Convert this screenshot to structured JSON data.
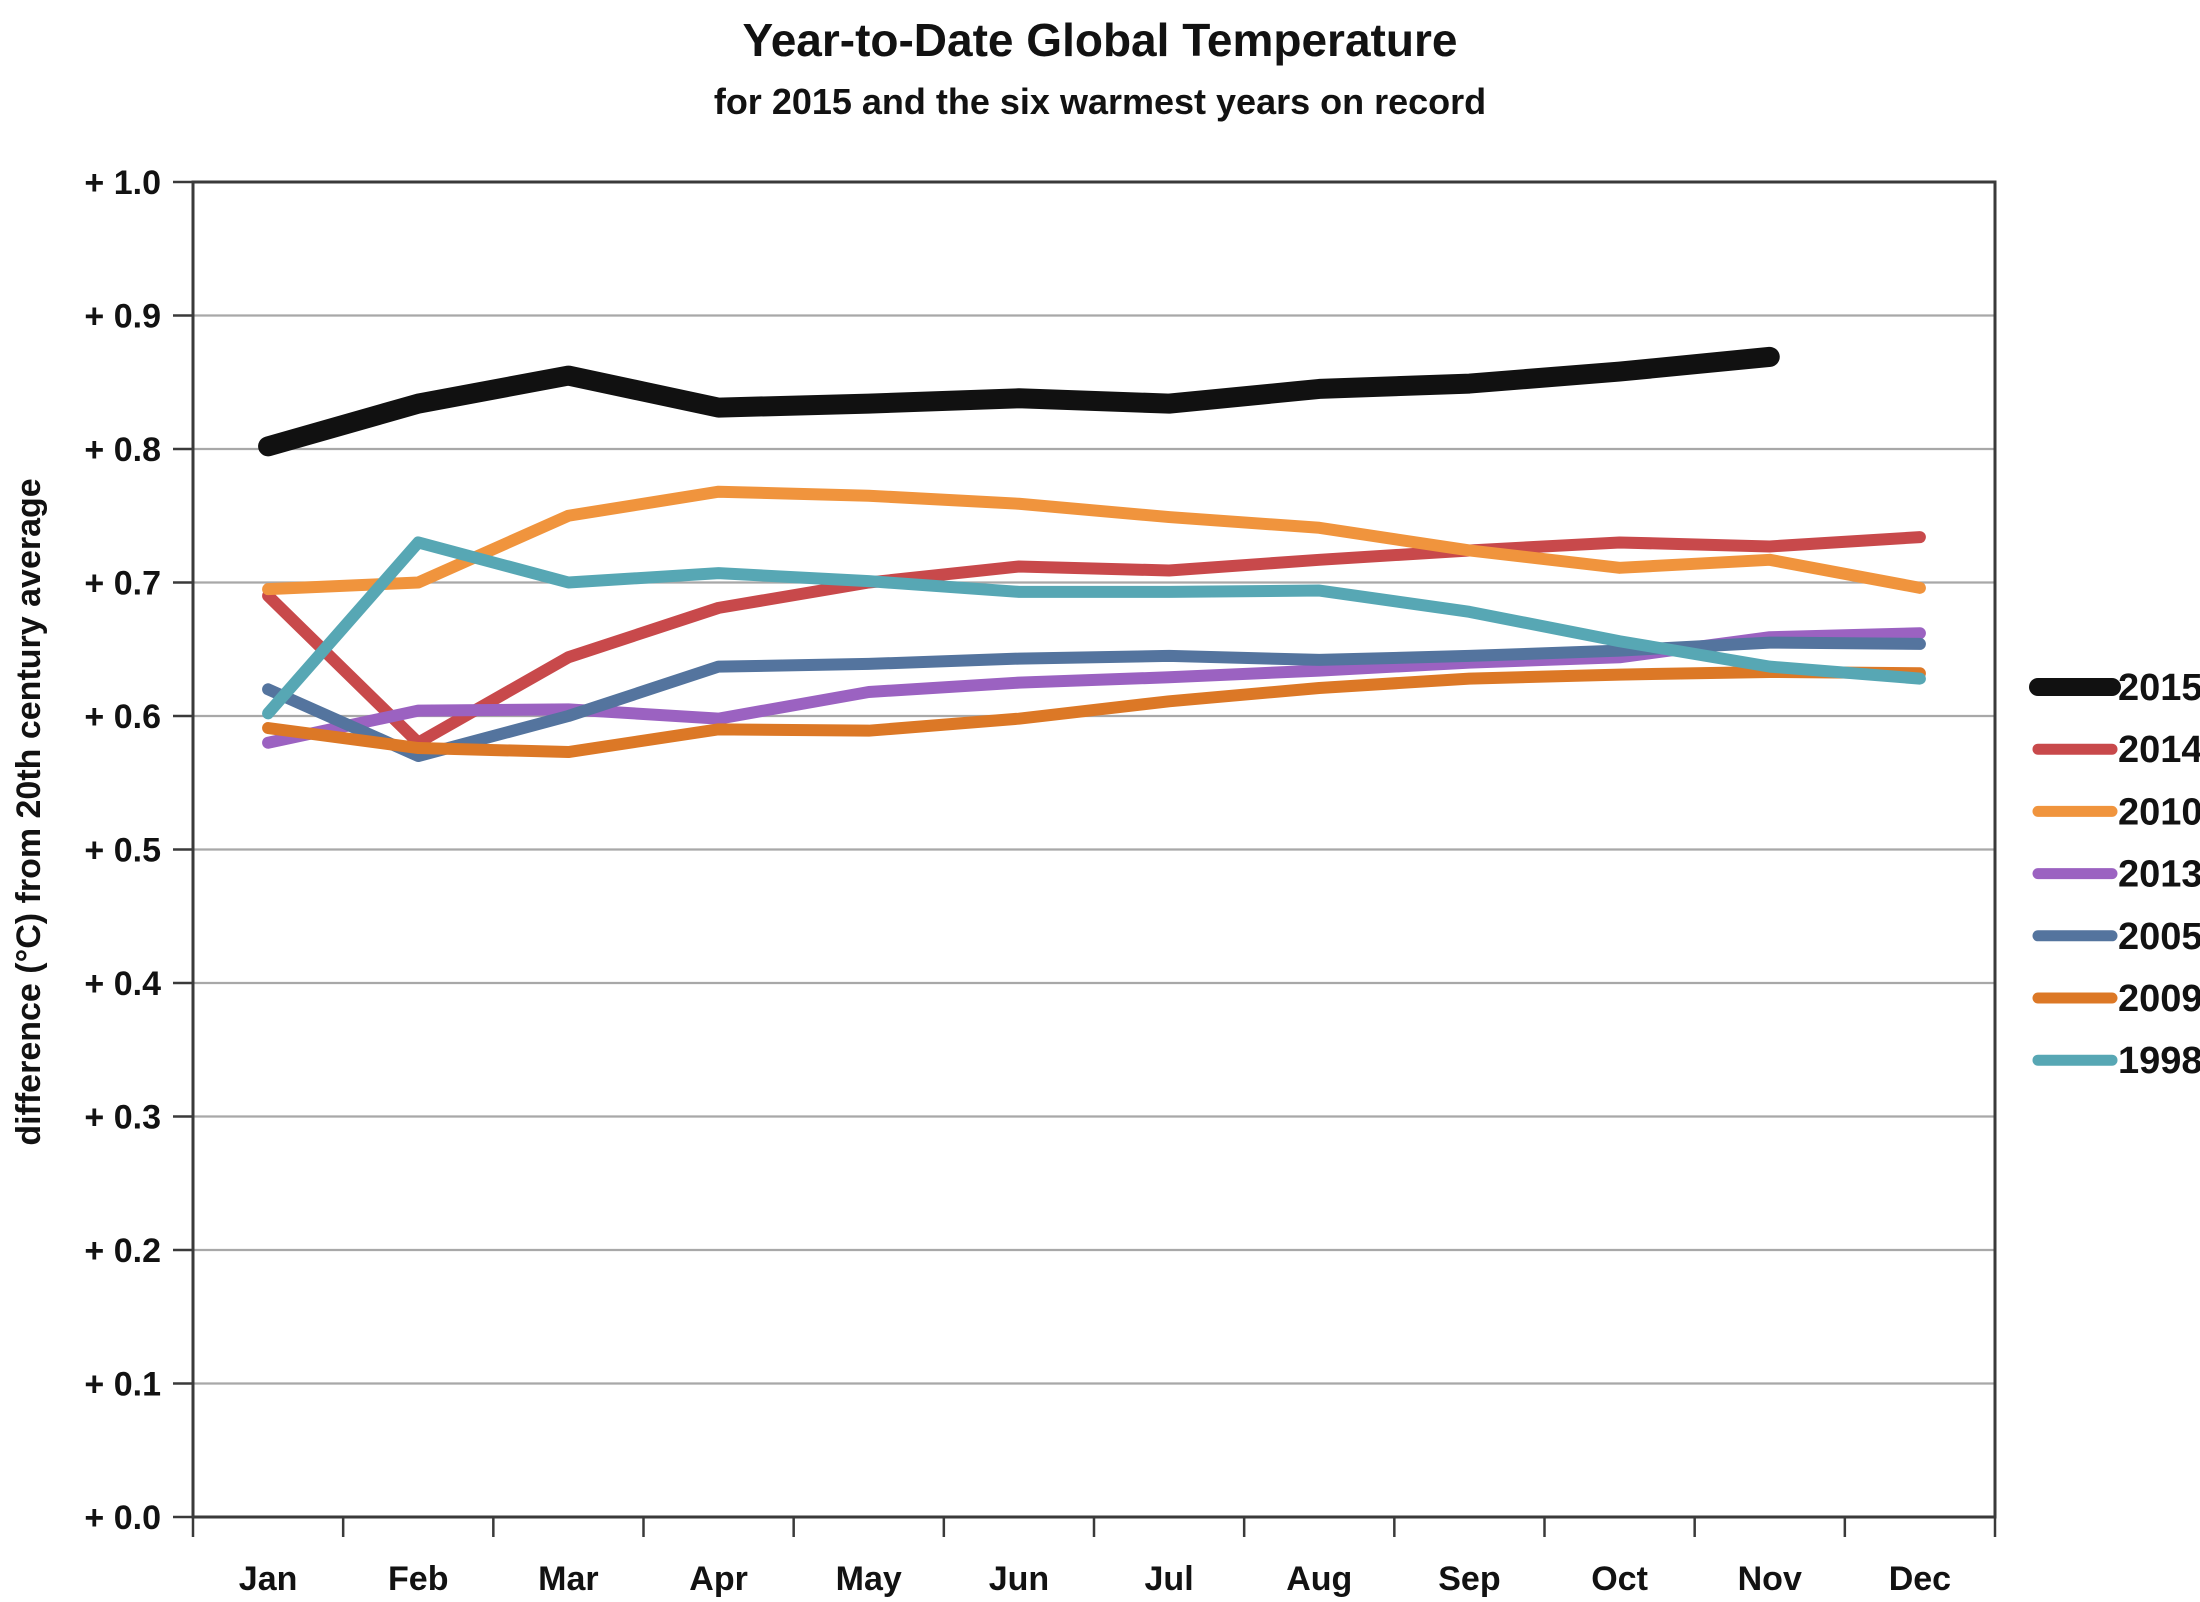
{
  "title": "Year-to-Date Global Temperature",
  "subtitle": "for 2015 and the six warmest years on record",
  "y_axis_title": "difference (°C) from 20th century average",
  "chart_data": {
    "type": "line",
    "categories": [
      "Jan",
      "Feb",
      "Mar",
      "Apr",
      "May",
      "Jun",
      "Jul",
      "Aug",
      "Sep",
      "Oct",
      "Nov",
      "Dec"
    ],
    "xlabel": "",
    "ylabel": "difference (°C) from 20th century average",
    "ylim": [
      0.0,
      1.0
    ],
    "y_tick_step": 0.1,
    "y_tick_labels": [
      "+ 0.0",
      "+ 0.1",
      "+ 0.2",
      "+ 0.3",
      "+ 0.4",
      "+ 0.5",
      "+ 0.6",
      "+ 0.7",
      "+ 0.8",
      "+ 0.9",
      "+ 1.0"
    ],
    "grid": true,
    "legend_position": "right",
    "series": [
      {
        "name": "2015",
        "color": "#111111",
        "thick": true,
        "values": [
          0.802,
          0.834,
          0.855,
          0.831,
          0.834,
          0.838,
          0.834,
          0.845,
          0.849,
          0.858,
          0.869,
          null
        ]
      },
      {
        "name": "2014",
        "color": "#c8494b",
        "thick": false,
        "values": [
          0.69,
          0.58,
          0.644,
          0.681,
          0.7,
          0.712,
          0.709,
          0.717,
          0.724,
          0.73,
          0.727,
          0.734
        ]
      },
      {
        "name": "2010",
        "color": "#f0943d",
        "thick": false,
        "values": [
          0.695,
          0.7,
          0.75,
          0.768,
          0.765,
          0.759,
          0.749,
          0.741,
          0.724,
          0.711,
          0.717,
          0.696
        ]
      },
      {
        "name": "2013",
        "color": "#9b62c1",
        "thick": false,
        "values": [
          0.58,
          0.604,
          0.605,
          0.598,
          0.618,
          0.625,
          0.629,
          0.634,
          0.64,
          0.644,
          0.659,
          0.662
        ]
      },
      {
        "name": "2005",
        "color": "#54749e",
        "thick": false,
        "values": [
          0.62,
          0.57,
          0.6,
          0.637,
          0.639,
          0.643,
          0.645,
          0.642,
          0.645,
          0.649,
          0.655,
          0.654
        ]
      },
      {
        "name": "2009",
        "color": "#dc7826",
        "thick": false,
        "values": [
          0.591,
          0.576,
          0.573,
          0.59,
          0.589,
          0.598,
          0.611,
          0.621,
          0.628,
          0.631,
          0.633,
          0.632
        ]
      },
      {
        "name": "1998",
        "color": "#57a7b4",
        "thick": false,
        "values": [
          0.602,
          0.73,
          0.7,
          0.707,
          0.701,
          0.693,
          0.693,
          0.694,
          0.678,
          0.656,
          0.637,
          0.628
        ]
      }
    ]
  },
  "colors": {
    "background": "#ffffff",
    "gridline": "#a8a8a8",
    "axis_frame": "#3a3a3a",
    "text": "#121212"
  }
}
